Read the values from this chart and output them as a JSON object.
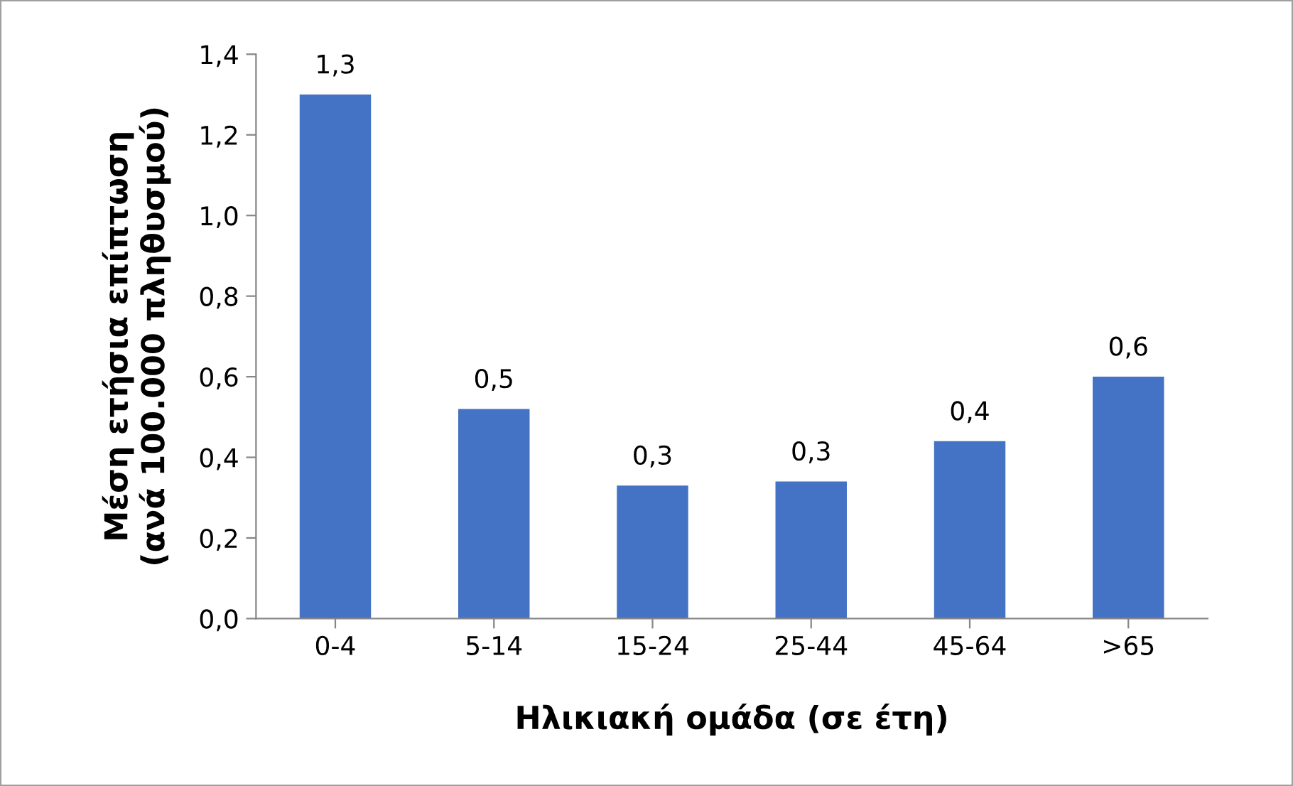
{
  "chart_data": {
    "type": "bar",
    "xlabel": "Ηλικιακή ομάδα (σε έτη)",
    "ylabel": "Μέση ετήσια επίπτωση\n(ανά 100.000 πληθυσμού)",
    "categories": [
      "0-4",
      "5-14",
      "15-24",
      "25-44",
      "45-64",
      ">65"
    ],
    "values": [
      1.3,
      0.52,
      0.33,
      0.34,
      0.44,
      0.6
    ],
    "value_labels": [
      "1,3",
      "0,5",
      "0,3",
      "0,3",
      "0,4",
      "0,6"
    ],
    "color": "#4472c4",
    "ylim": [
      0,
      1.4
    ],
    "yticks": [
      {
        "value": 0,
        "label": "0,0"
      },
      {
        "value": 0.2,
        "label": "0,2"
      },
      {
        "value": 0.4,
        "label": "0,4"
      },
      {
        "value": 0.6,
        "label": "0,6"
      },
      {
        "value": 0.8,
        "label": "0,8"
      },
      {
        "value": 1.0,
        "label": "1,0"
      },
      {
        "value": 1.2,
        "label": "1,2"
      },
      {
        "value": 1.4,
        "label": "1,4"
      }
    ],
    "grid": false,
    "legend": false
  }
}
